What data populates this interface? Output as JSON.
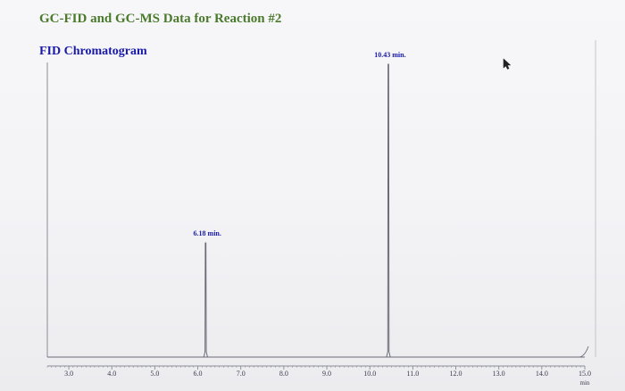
{
  "page": {
    "title": "GC-FID and GC-MS Data for Reaction #2"
  },
  "chart_data": {
    "type": "line",
    "title": "FID Chromatogram",
    "xlabel": "",
    "x_unit_label": "min",
    "ylabel": "",
    "xlim": [
      2.5,
      15.0
    ],
    "ylim": [
      0,
      1
    ],
    "x_ticks": [
      "3.0",
      "4.0",
      "5.0",
      "6.0",
      "7.0",
      "8.0",
      "9.0",
      "10.0",
      "11.0",
      "12.0",
      "13.0",
      "14.0",
      "15.0"
    ],
    "grid": false,
    "peaks": [
      {
        "x": 6.18,
        "relative_height": 0.39,
        "label": "6.18 min."
      },
      {
        "x": 10.43,
        "relative_height": 1.0,
        "label": "10.43 min."
      }
    ],
    "colors": {
      "trace": "#6b6b78",
      "axis": "#8a8a98",
      "peak_label": "#1a1aa8",
      "title": "#4a7a2c",
      "chart_title": "#1a1aa8"
    }
  },
  "icons": {
    "cursor": "mouse-pointer-icon"
  }
}
